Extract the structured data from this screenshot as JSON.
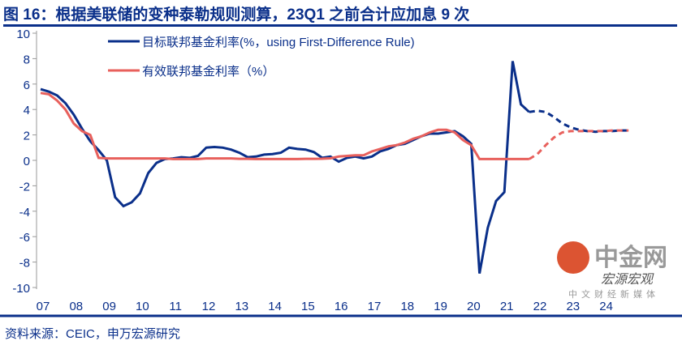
{
  "title": "图 16：根据美联储的变种泰勒规则测算，23Q1 之前合计应加息 9 次",
  "source": "资料来源：CEIC，申万宏源研究",
  "watermark": {
    "brand": "中金网",
    "sub": "中文财经新媒体",
    "account": "宏源宏观"
  },
  "chart_data": {
    "type": "line",
    "title": "图 16：根据美联储的变种泰勒规则测算，23Q1 之前合计应加息 9 次",
    "xlabel": "",
    "ylabel": "",
    "ylim": [
      -10,
      10
    ],
    "yticks": [
      "10",
      "8",
      "6",
      "4",
      "2",
      "0",
      "-2",
      "-4",
      "-6",
      "-8",
      "-10"
    ],
    "xticks": [
      "07",
      "08",
      "09",
      "10",
      "11",
      "12",
      "13",
      "14",
      "15",
      "16",
      "17",
      "18",
      "19",
      "20",
      "21",
      "22",
      "23",
      "24"
    ],
    "x_start": 2007,
    "x_step": 0.25,
    "legend_position": "top-left",
    "series": [
      {
        "name": "目标联邦基金利率(%，using First-Difference Rule)",
        "color": "#0a2f8a",
        "values": [
          5.6,
          5.4,
          5.1,
          4.5,
          3.6,
          2.5,
          1.5,
          0.8,
          0,
          -2.9,
          -3.6,
          -3.3,
          -2.6,
          -1.0,
          -0.2,
          0.1,
          0.15,
          0.25,
          0.2,
          0.35,
          1.0,
          1.05,
          1.0,
          0.85,
          0.6,
          0.25,
          0.3,
          0.45,
          0.5,
          0.6,
          1.0,
          0.9,
          0.85,
          0.65,
          0.2,
          0.3,
          -0.1,
          0.2,
          0.3,
          0.15,
          0.3,
          0.7,
          0.9,
          1.2,
          1.3,
          1.6,
          1.9,
          2.1,
          2.1,
          2.2,
          2.3,
          1.9,
          1.3,
          -8.9,
          -5.3,
          -3.2,
          -2.5,
          7.8,
          4.4,
          3.8
        ],
        "forecast": [
          3.8,
          3.9,
          3.8,
          3.4,
          2.9,
          2.6,
          2.4,
          2.3,
          2.25,
          2.3,
          2.3,
          2.35,
          2.35
        ]
      },
      {
        "name": "有效联邦基金利率（%）",
        "color": "#e8605c",
        "values": [
          5.3,
          5.2,
          4.7,
          4.0,
          2.9,
          2.3,
          2.0,
          0.2,
          0.15,
          0.15,
          0.15,
          0.15,
          0.15,
          0.15,
          0.15,
          0.15,
          0.1,
          0.1,
          0.1,
          0.1,
          0.15,
          0.15,
          0.15,
          0.15,
          0.12,
          0.12,
          0.1,
          0.1,
          0.1,
          0.1,
          0.1,
          0.1,
          0.12,
          0.12,
          0.13,
          0.16,
          0.3,
          0.35,
          0.4,
          0.4,
          0.7,
          0.9,
          1.1,
          1.2,
          1.4,
          1.7,
          1.9,
          2.2,
          2.4,
          2.4,
          2.2,
          1.6,
          1.2,
          0.1,
          0.1,
          0.1,
          0.1,
          0.1,
          0.1,
          0.1
        ],
        "forecast": [
          0.1,
          0.5,
          1.2,
          1.8,
          2.2,
          2.3,
          2.3,
          2.3,
          2.3,
          2.3,
          2.35,
          2.35,
          2.35
        ]
      }
    ]
  }
}
